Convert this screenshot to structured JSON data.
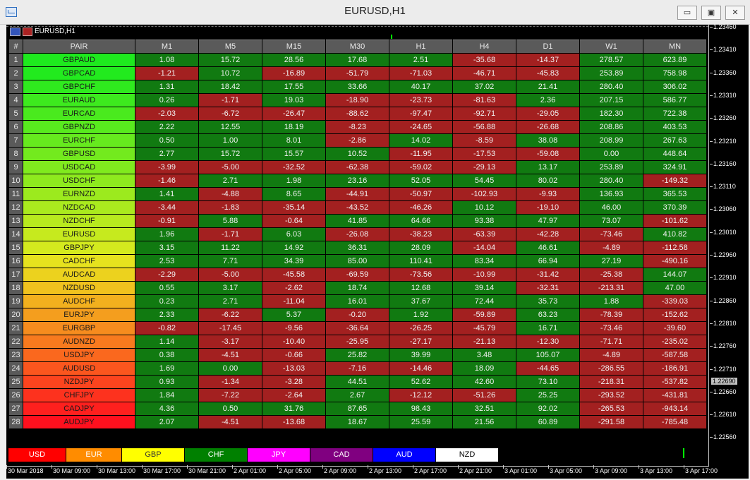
{
  "window": {
    "title": "EURUSD,H1",
    "chart_label": "EURUSD,H1",
    "controls": {
      "minimize": "▭",
      "restore": "▣",
      "close": "✕"
    }
  },
  "table": {
    "headers": [
      "#",
      "PAIR",
      "M1",
      "M5",
      "M15",
      "M30",
      "H1",
      "H4",
      "D1",
      "W1",
      "MN"
    ],
    "rows": [
      {
        "n": "1",
        "pair": "GBPAUD",
        "color": "#1eea1e",
        "v": [
          "1.08",
          "15.72",
          "28.56",
          "17.68",
          "2.51",
          "-35.68",
          "-14.37",
          "278.57",
          "623.89"
        ]
      },
      {
        "n": "2",
        "pair": "GBPCAD",
        "color": "#22ea1e",
        "v": [
          "-1.21",
          "10.72",
          "-16.89",
          "-51.79",
          "-71.03",
          "-46.71",
          "-45.83",
          "253.89",
          "758.98"
        ]
      },
      {
        "n": "3",
        "pair": "GBPCHF",
        "color": "#2fea1e",
        "v": [
          "1.31",
          "18.42",
          "17.55",
          "33.66",
          "40.17",
          "37.02",
          "21.41",
          "280.40",
          "306.02"
        ]
      },
      {
        "n": "4",
        "pair": "EURAUD",
        "color": "#3dea1e",
        "v": [
          "0.26",
          "-1.71",
          "19.03",
          "-18.90",
          "-23.73",
          "-81.63",
          "2.36",
          "207.15",
          "586.77"
        ]
      },
      {
        "n": "5",
        "pair": "EURCAD",
        "color": "#4aea1e",
        "v": [
          "-2.03",
          "-6.72",
          "-26.47",
          "-88.62",
          "-97.47",
          "-92.71",
          "-29.05",
          "182.30",
          "722.38"
        ]
      },
      {
        "n": "6",
        "pair": "GBPNZD",
        "color": "#58ea1e",
        "v": [
          "2.22",
          "12.55",
          "18.19",
          "-8.23",
          "-24.65",
          "-56.88",
          "-26.68",
          "208.86",
          "403.53"
        ]
      },
      {
        "n": "7",
        "pair": "EURCHF",
        "color": "#66ea1e",
        "v": [
          "0.50",
          "1.00",
          "8.01",
          "-2.86",
          "14.02",
          "-8.59",
          "38.08",
          "208.99",
          "267.63"
        ]
      },
      {
        "n": "8",
        "pair": "GBPUSD",
        "color": "#73ea1e",
        "v": [
          "2.77",
          "15.72",
          "15.57",
          "10.52",
          "-11.95",
          "-17.53",
          "-59.08",
          "0.00",
          "448.64"
        ]
      },
      {
        "n": "9",
        "pair": "USDCAD",
        "color": "#80ea1e",
        "v": [
          "-3.99",
          "-5.00",
          "-32.52",
          "-62.38",
          "-59.02",
          "-29.13",
          "13.17",
          "253.89",
          "324.91"
        ]
      },
      {
        "n": "10",
        "pair": "USDCHF",
        "color": "#8eea1e",
        "v": [
          "-1.46",
          "2.71",
          "1.98",
          "23.16",
          "52.05",
          "54.45",
          "80.02",
          "280.40",
          "-149.32"
        ]
      },
      {
        "n": "11",
        "pair": "EURNZD",
        "color": "#9cea1e",
        "v": [
          "1.41",
          "-4.88",
          "8.65",
          "-44.91",
          "-50.97",
          "-102.93",
          "-9.93",
          "136.93",
          "365.53"
        ]
      },
      {
        "n": "12",
        "pair": "NZDCAD",
        "color": "#aaea1e",
        "v": [
          "-3.44",
          "-1.83",
          "-35.14",
          "-43.52",
          "-46.26",
          "10.12",
          "-19.10",
          "46.00",
          "370.39"
        ]
      },
      {
        "n": "13",
        "pair": "NZDCHF",
        "color": "#b8ea1e",
        "v": [
          "-0.91",
          "5.88",
          "-0.64",
          "41.85",
          "64.66",
          "93.38",
          "47.97",
          "73.07",
          "-101.62"
        ]
      },
      {
        "n": "14",
        "pair": "EURUSD",
        "color": "#c6ea1e",
        "v": [
          "1.96",
          "-1.71",
          "6.03",
          "-26.08",
          "-38.23",
          "-63.39",
          "-42.28",
          "-73.46",
          "410.82"
        ]
      },
      {
        "n": "15",
        "pair": "GBPJPY",
        "color": "#d4ea1e",
        "v": [
          "3.15",
          "11.22",
          "14.92",
          "36.31",
          "28.09",
          "-14.04",
          "46.61",
          "-4.89",
          "-112.58"
        ]
      },
      {
        "n": "16",
        "pair": "CADCHF",
        "color": "#e6e21e",
        "v": [
          "2.53",
          "7.71",
          "34.39",
          "85.00",
          "110.41",
          "83.34",
          "66.94",
          "27.19",
          "-490.16"
        ]
      },
      {
        "n": "17",
        "pair": "AUDCAD",
        "color": "#ecd21e",
        "v": [
          "-2.29",
          "-5.00",
          "-45.58",
          "-69.59",
          "-73.56",
          "-10.99",
          "-31.42",
          "-25.38",
          "144.07"
        ]
      },
      {
        "n": "18",
        "pair": "NZDUSD",
        "color": "#f0c21e",
        "v": [
          "0.55",
          "3.17",
          "-2.62",
          "18.74",
          "12.68",
          "39.14",
          "-32.31",
          "-213.31",
          "47.00"
        ]
      },
      {
        "n": "19",
        "pair": "AUDCHF",
        "color": "#f2b01e",
        "v": [
          "0.23",
          "2.71",
          "-11.04",
          "16.01",
          "37.67",
          "72.44",
          "35.73",
          "1.88",
          "-339.03"
        ]
      },
      {
        "n": "20",
        "pair": "EURJPY",
        "color": "#f49e1e",
        "v": [
          "2.33",
          "-6.22",
          "5.37",
          "-0.20",
          "1.92",
          "-59.89",
          "63.23",
          "-78.39",
          "-152.62"
        ]
      },
      {
        "n": "21",
        "pair": "EURGBP",
        "color": "#f68c1e",
        "v": [
          "-0.82",
          "-17.45",
          "-9.56",
          "-36.64",
          "-26.25",
          "-45.79",
          "16.71",
          "-73.46",
          "-39.60"
        ]
      },
      {
        "n": "22",
        "pair": "AUDNZD",
        "color": "#f87a1e",
        "v": [
          "1.14",
          "-3.17",
          "-10.40",
          "-25.95",
          "-27.17",
          "-21.13",
          "-12.30",
          "-71.71",
          "-235.02"
        ]
      },
      {
        "n": "23",
        "pair": "USDJPY",
        "color": "#fa681e",
        "v": [
          "0.38",
          "-4.51",
          "-0.66",
          "25.82",
          "39.99",
          "3.48",
          "105.07",
          "-4.89",
          "-587.58"
        ]
      },
      {
        "n": "24",
        "pair": "AUDUSD",
        "color": "#fb561e",
        "v": [
          "1.69",
          "0.00",
          "-13.03",
          "-7.16",
          "-14.46",
          "18.09",
          "-44.65",
          "-286.55",
          "-186.91"
        ]
      },
      {
        "n": "25",
        "pair": "NZDJPY",
        "color": "#fc441e",
        "v": [
          "0.93",
          "-1.34",
          "-3.28",
          "44.51",
          "52.62",
          "42.60",
          "73.10",
          "-218.31",
          "-537.82"
        ]
      },
      {
        "n": "26",
        "pair": "CHFJPY",
        "color": "#fd321e",
        "v": [
          "1.84",
          "-7.22",
          "-2.64",
          "2.67",
          "-12.12",
          "-51.26",
          "25.25",
          "-293.52",
          "-431.81"
        ]
      },
      {
        "n": "27",
        "pair": "CADJPY",
        "color": "#fe201e",
        "v": [
          "4.36",
          "0.50",
          "31.76",
          "87.65",
          "98.43",
          "32.51",
          "92.02",
          "-265.53",
          "-943.14"
        ]
      },
      {
        "n": "28",
        "pair": "AUDJPY",
        "color": "#ff101e",
        "v": [
          "2.07",
          "-4.51",
          "-13.68",
          "18.67",
          "25.59",
          "21.56",
          "60.89",
          "-291.58",
          "-785.48"
        ]
      }
    ],
    "colors": {
      "positive": "#117a11",
      "negative": "#a32020"
    }
  },
  "currencies": [
    {
      "label": "USD",
      "bg": "#ff0000",
      "fg": "#ffffff"
    },
    {
      "label": "EUR",
      "bg": "#ff8c00",
      "fg": "#ffffff"
    },
    {
      "label": "GBP",
      "bg": "#ffff00",
      "fg": "#333333"
    },
    {
      "label": "CHF",
      "bg": "#008000",
      "fg": "#ffffff"
    },
    {
      "label": "JPY",
      "bg": "#ff00ff",
      "fg": "#ffffff"
    },
    {
      "label": "CAD",
      "bg": "#800080",
      "fg": "#ffffff"
    },
    {
      "label": "AUD",
      "bg": "#0000ff",
      "fg": "#ffffff"
    },
    {
      "label": "NZD",
      "bg": "#ffffff",
      "fg": "#000000"
    }
  ],
  "price_axis": {
    "ticks": [
      "1.23460",
      "1.23410",
      "1.23360",
      "1.23310",
      "1.23260",
      "1.23210",
      "1.23160",
      "1.23110",
      "1.23060",
      "1.23010",
      "1.22960",
      "1.22910",
      "1.22860",
      "1.22810",
      "1.22760",
      "1.22710",
      "1.22660",
      "1.22610",
      "1.22560"
    ],
    "current_price": "1.22690"
  },
  "time_axis": {
    "ticks": [
      "30 Mar 2018",
      "30 Mar 09:00",
      "30 Mar 13:00",
      "30 Mar 17:00",
      "30 Mar 21:00",
      "2 Apr 01:00",
      "2 Apr 05:00",
      "2 Apr 09:00",
      "2 Apr 13:00",
      "2 Apr 17:00",
      "2 Apr 21:00",
      "3 Apr 01:00",
      "3 Apr 05:00",
      "3 Apr 09:00",
      "3 Apr 13:00",
      "3 Apr 17:00"
    ]
  }
}
